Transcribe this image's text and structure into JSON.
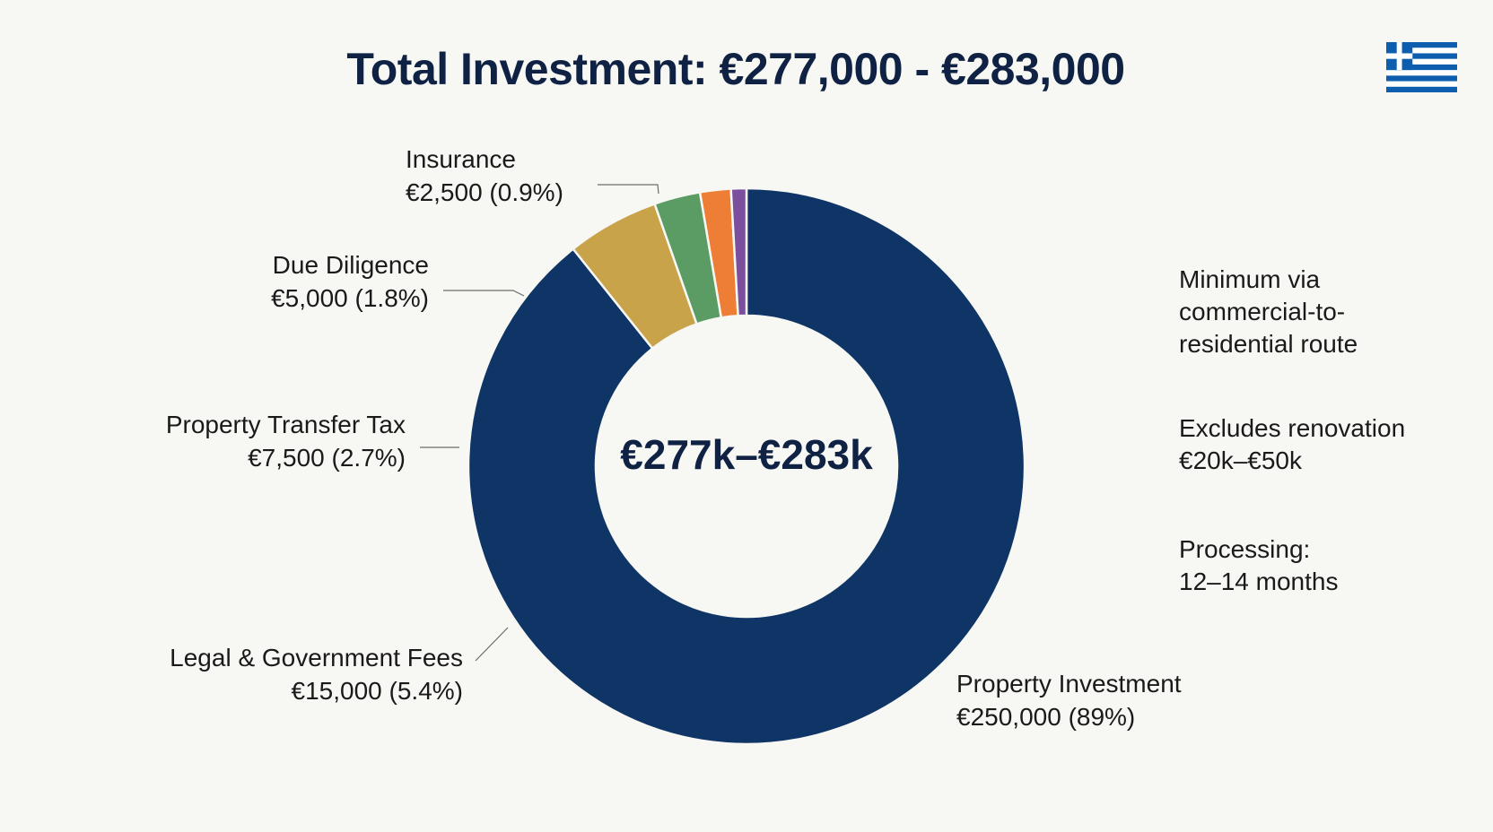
{
  "title": "Total Investment: €277,000 - €283,000",
  "flag_icon": "greece-flag-icon",
  "center_label": "€277k–€283k",
  "notes": [
    {
      "lines": [
        "Minimum via",
        "commercial-to-",
        "residential route"
      ]
    },
    {
      "lines": [
        "Excludes renovation",
        "€20k–€50k"
      ]
    },
    {
      "lines": [
        "Processing:",
        "12–14 months"
      ]
    }
  ],
  "colors": {
    "background": "#f7f7f4",
    "title": "#0f2244",
    "flag_blue": "#0d5eaf"
  },
  "chart_data": {
    "type": "pie",
    "donut": true,
    "slices": [
      {
        "label": "Property Investment",
        "value": 250000,
        "value_text": "€250,000 (89%)",
        "color": "#0f3466"
      },
      {
        "label": "Legal & Government Fees",
        "value": 15000,
        "value_text": "€15,000 (5.4%)",
        "color": "#c9a34a"
      },
      {
        "label": "Property Transfer Tax",
        "value": 7500,
        "value_text": "€7,500 (2.7%)",
        "color": "#5a9c63"
      },
      {
        "label": "Due Diligence",
        "value": 5000,
        "value_text": "€5,000 (1.8%)",
        "color": "#ee7d35"
      },
      {
        "label": "Insurance",
        "value": 2500,
        "value_text": "€2,500 (0.9%)",
        "color": "#7b4f9d"
      }
    ]
  }
}
